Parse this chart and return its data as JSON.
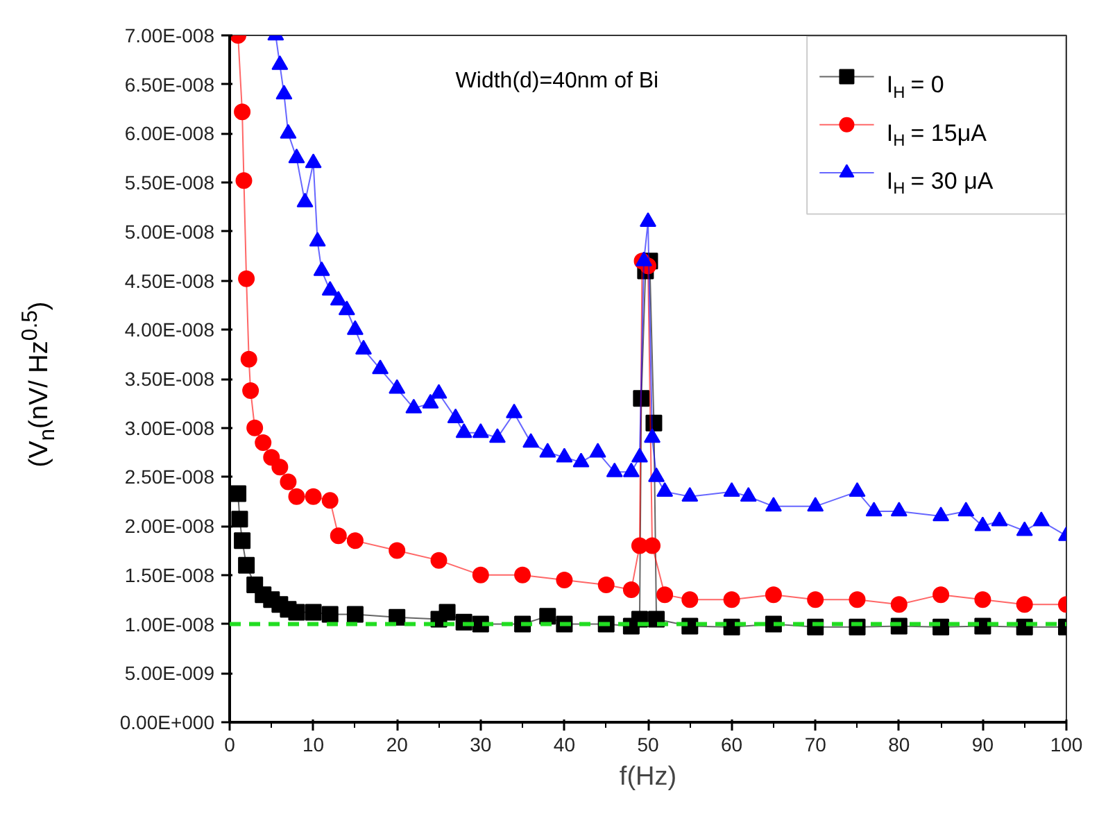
{
  "chart_data": {
    "type": "line",
    "xlabel": "f(Hz)",
    "ylabel": "(V$_{n}$(nV/ Hz$^{0.5}$)",
    "annotations": [
      "Width(d)=40nm of Bi"
    ],
    "xlim": [
      0,
      100
    ],
    "xticks": [
      0,
      10,
      20,
      30,
      40,
      50,
      60,
      70,
      80,
      90,
      100
    ],
    "ylim": [
      0,
      7e-08
    ],
    "yticks": [
      {
        "value": 0,
        "label": "0.00E+000"
      },
      {
        "value": 5e-09,
        "label": "5.00E-009"
      },
      {
        "value": 1e-08,
        "label": "1.00E-008"
      },
      {
        "value": 1.5e-08,
        "label": "1.50E-008"
      },
      {
        "value": 2e-08,
        "label": "2.00E-008"
      },
      {
        "value": 2.5e-08,
        "label": "2.50E-008"
      },
      {
        "value": 3e-08,
        "label": "3.00E-008"
      },
      {
        "value": 3.5e-08,
        "label": "3.50E-008"
      },
      {
        "value": 4e-08,
        "label": "4.00E-008"
      },
      {
        "value": 4.5e-08,
        "label": "4.50E-008"
      },
      {
        "value": 5e-08,
        "label": "5.00E-008"
      },
      {
        "value": 5.5e-08,
        "label": "5.50E-008"
      },
      {
        "value": 6e-08,
        "label": "6.00E-008"
      },
      {
        "value": 6.5e-08,
        "label": "6.50E-008"
      },
      {
        "value": 7e-08,
        "label": "7.00E-008"
      }
    ],
    "grid": false,
    "legend": "top right",
    "line_style": "solid",
    "ref_lines": [
      {
        "axis": "y",
        "value": 1e-08,
        "color": "#22dd22",
        "line_style": "dashed"
      }
    ],
    "series": [
      {
        "name": "I$_{H}$ = 0",
        "color": "#000000",
        "marker": "square",
        "x": [
          1,
          1.2,
          1.5,
          2,
          3,
          4,
          5,
          6,
          7,
          8,
          10,
          12,
          15,
          20,
          25,
          26,
          28,
          30,
          35,
          38,
          40,
          45,
          48,
          49,
          49.2,
          49.7,
          50.2,
          50.7,
          51,
          55,
          60,
          65,
          70,
          75,
          80,
          85,
          90,
          95,
          100
        ],
        "values": [
          2.33e-08,
          2.07e-08,
          1.85e-08,
          1.6e-08,
          1.4e-08,
          1.3e-08,
          1.25e-08,
          1.2e-08,
          1.15e-08,
          1.12e-08,
          1.12e-08,
          1.1e-08,
          1.1e-08,
          1.07e-08,
          1.05e-08,
          1.12e-08,
          1.02e-08,
          1e-08,
          1e-08,
          1.08e-08,
          1e-08,
          1e-08,
          9.8e-09,
          1.05e-08,
          3.3e-08,
          4.6e-08,
          4.7e-08,
          3.05e-08,
          1.05e-08,
          9.8e-09,
          9.7e-09,
          1e-08,
          9.7e-09,
          9.7e-09,
          9.8e-09,
          9.7e-09,
          9.8e-09,
          9.7e-09,
          9.7e-09
        ]
      },
      {
        "name": "I$_{H}$ = 15μA",
        "color": "#ff0000",
        "marker": "circle",
        "x": [
          1,
          1.5,
          1.7,
          2,
          2.3,
          2.5,
          3,
          4,
          5,
          6,
          7,
          8,
          10,
          12,
          13,
          15,
          20,
          25,
          30,
          35,
          40,
          45,
          48,
          49,
          49.3,
          50,
          50.5,
          52,
          55,
          60,
          65,
          70,
          75,
          80,
          85,
          90,
          95,
          100
        ],
        "values": [
          7e-08,
          6.22e-08,
          5.52e-08,
          4.52e-08,
          3.7e-08,
          3.38e-08,
          3e-08,
          2.85e-08,
          2.7e-08,
          2.6e-08,
          2.45e-08,
          2.3e-08,
          2.3e-08,
          2.26e-08,
          1.9e-08,
          1.85e-08,
          1.75e-08,
          1.65e-08,
          1.5e-08,
          1.5e-08,
          1.45e-08,
          1.4e-08,
          1.35e-08,
          1.8e-08,
          4.7e-08,
          4.65e-08,
          1.8e-08,
          1.3e-08,
          1.25e-08,
          1.25e-08,
          1.3e-08,
          1.25e-08,
          1.25e-08,
          1.2e-08,
          1.3e-08,
          1.25e-08,
          1.2e-08,
          1.2e-08
        ]
      },
      {
        "name": "I$_{H}$ = 30 μA",
        "color": "#0000ff",
        "marker": "triangle",
        "x": [
          5.5,
          6,
          6.5,
          7,
          8,
          9,
          10,
          10.5,
          11,
          12,
          13,
          14,
          15,
          16,
          18,
          20,
          22,
          24,
          25,
          27,
          28,
          30,
          32,
          34,
          36,
          38,
          40,
          42,
          44,
          46,
          48,
          49,
          49.5,
          50,
          50.5,
          51,
          52,
          55,
          60,
          62,
          65,
          70,
          75,
          77,
          80,
          85,
          88,
          90,
          92,
          95,
          97,
          100
        ],
        "values": [
          7e-08,
          6.7e-08,
          6.4e-08,
          6e-08,
          5.75e-08,
          5.3e-08,
          5.7e-08,
          4.9e-08,
          4.6e-08,
          4.4e-08,
          4.3e-08,
          4.2e-08,
          4e-08,
          3.8e-08,
          3.6e-08,
          3.4e-08,
          3.2e-08,
          3.25e-08,
          3.35e-08,
          3.1e-08,
          2.95e-08,
          2.95e-08,
          2.9e-08,
          3.15e-08,
          2.85e-08,
          2.75e-08,
          2.7e-08,
          2.65e-08,
          2.75e-08,
          2.55e-08,
          2.55e-08,
          2.7e-08,
          4.7e-08,
          5.1e-08,
          2.9e-08,
          2.5e-08,
          2.35e-08,
          2.3e-08,
          2.35e-08,
          2.3e-08,
          2.2e-08,
          2.2e-08,
          2.35e-08,
          2.15e-08,
          2.15e-08,
          2.1e-08,
          2.15e-08,
          2e-08,
          2.05e-08,
          1.95e-08,
          2.05e-08,
          1.9e-08
        ]
      }
    ]
  }
}
